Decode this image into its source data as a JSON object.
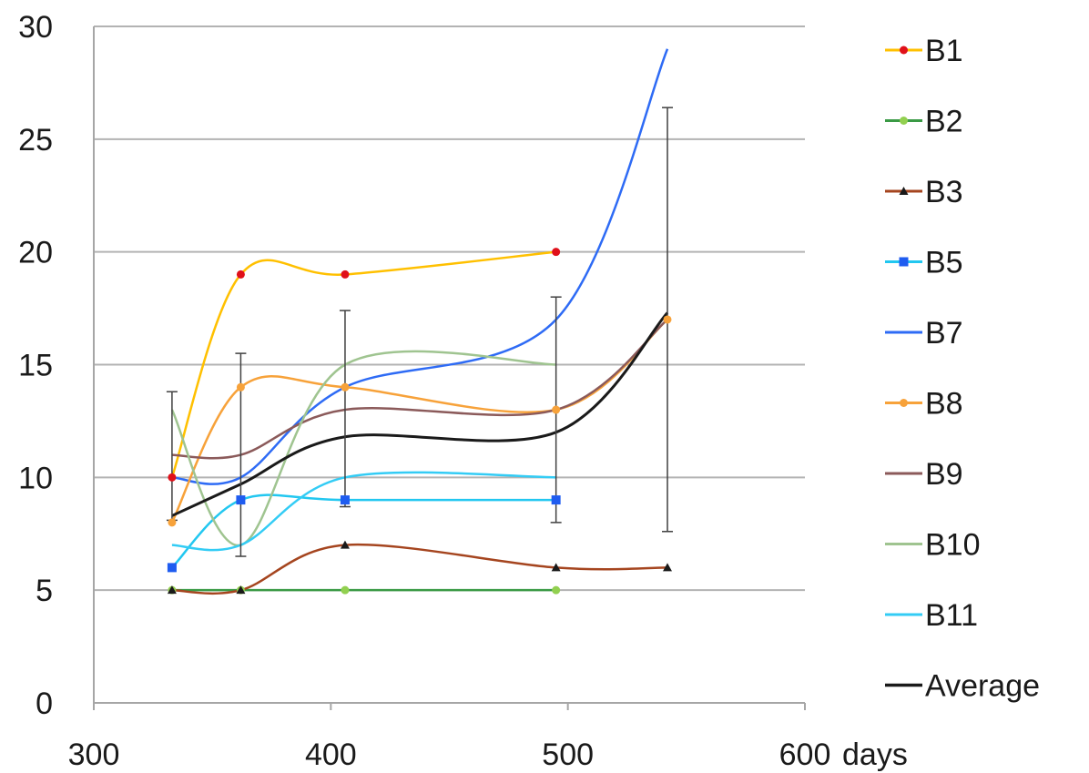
{
  "chart_data": {
    "type": "line",
    "title": "",
    "xlabel": "days",
    "ylabel": "",
    "xlim": [
      300,
      600
    ],
    "ylim": [
      0,
      30
    ],
    "x_ticks": [
      300,
      400,
      500,
      600
    ],
    "y_ticks": [
      0,
      5,
      10,
      15,
      20,
      25,
      30
    ],
    "x_tick_labels": [
      "300",
      "400",
      "500",
      "600"
    ],
    "y_tick_labels": [
      "0",
      "5",
      "10",
      "15",
      "20",
      "25",
      "30"
    ],
    "grid": "horizontal",
    "legend_position": "right",
    "smooth": true,
    "series": [
      {
        "name": "B1",
        "color": "#FFC000",
        "marker_color": "#E0101A",
        "marker": "circle",
        "x": [
          333,
          362,
          406,
          495
        ],
        "y": [
          10,
          19,
          19,
          20
        ]
      },
      {
        "name": "B2",
        "color": "#3A9A45",
        "marker_color": "#92D050",
        "marker": "circle",
        "x": [
          333,
          362,
          406,
          495
        ],
        "y": [
          5,
          5,
          5,
          5
        ]
      },
      {
        "name": "B3",
        "color": "#A5451F",
        "marker_color": "#1A1A1A",
        "marker": "triangle",
        "x": [
          333,
          362,
          406,
          495,
          542
        ],
        "y": [
          5,
          5,
          7,
          6,
          6
        ]
      },
      {
        "name": "B5",
        "color": "#22C7F0",
        "marker_color": "#1F5CF0",
        "marker": "square",
        "x": [
          333,
          362,
          406,
          495
        ],
        "y": [
          6,
          9,
          9,
          9
        ]
      },
      {
        "name": "B7",
        "color": "#2E6BF5",
        "marker_color": "#2E6BF5",
        "marker": "none",
        "x": [
          333,
          362,
          406,
          495,
          542
        ],
        "y": [
          10,
          10,
          14,
          17,
          29
        ]
      },
      {
        "name": "B8",
        "color": "#F7A23A",
        "marker_color": "#F7A23A",
        "marker": "circle",
        "x": [
          333,
          362,
          406,
          495,
          542
        ],
        "y": [
          8,
          14,
          14,
          13,
          17
        ]
      },
      {
        "name": "B9",
        "color": "#8B5A5A",
        "marker_color": "#8B5A5A",
        "marker": "none",
        "x": [
          333,
          362,
          406,
          495,
          542
        ],
        "y": [
          11,
          11,
          13,
          13,
          17
        ]
      },
      {
        "name": "B10",
        "color": "#9FC490",
        "marker_color": "#9FC490",
        "marker": "none",
        "x": [
          333,
          362,
          406,
          495
        ],
        "y": [
          13,
          7,
          15,
          15
        ]
      },
      {
        "name": "B11",
        "color": "#33CCF5",
        "marker_color": "#33CCF5",
        "marker": "none",
        "x": [
          333,
          362,
          406,
          495
        ],
        "y": [
          7,
          7,
          10,
          10
        ]
      },
      {
        "name": "Average",
        "color": "#1A1A1A",
        "marker_color": "#1A1A1A",
        "marker": "none",
        "x": [
          333,
          362,
          406,
          495,
          542
        ],
        "y": [
          8.3,
          9.7,
          11.8,
          12.0,
          17.3
        ],
        "error_bars": [
          [
            8.1,
            13.8
          ],
          [
            6.5,
            15.5
          ],
          [
            8.7,
            17.4
          ],
          [
            8.0,
            18.0
          ],
          [
            7.6,
            26.4
          ]
        ]
      }
    ]
  }
}
